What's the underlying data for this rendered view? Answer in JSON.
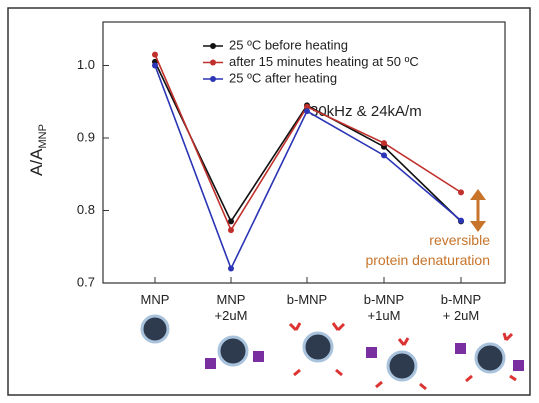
{
  "chart_data": {
    "type": "line",
    "ylabel": "A/A",
    "ylabel_subscript": "MNP",
    "categories": [
      "MNP",
      "MNP\n+2uM",
      "b-MNP",
      "b-MNP\n+1uM",
      "b-MNP\n+ 2uM"
    ],
    "series": [
      {
        "name": "25 ºC before heating",
        "color": "#111111",
        "values": [
          1.005,
          0.785,
          0.945,
          0.888,
          0.785
        ]
      },
      {
        "name": "after 15 minutes heating at 50 ºC",
        "color": "#c0302c",
        "values": [
          1.015,
          0.773,
          0.943,
          0.893,
          0.825
        ]
      },
      {
        "name": "25 ºC after heating",
        "color": "#2b35b5",
        "values": [
          1.0,
          0.72,
          0.937,
          0.876,
          0.786
        ]
      }
    ],
    "ylim": [
      0.7,
      1.06
    ],
    "yticks": [
      0.7,
      0.8,
      0.9,
      {
        "value": 1,
        "label": "1.0"
      }
    ],
    "annotations": [
      "30kHz & 24kA/m",
      "reversible\nprotein denaturation"
    ],
    "legend": "upper-left"
  }
}
